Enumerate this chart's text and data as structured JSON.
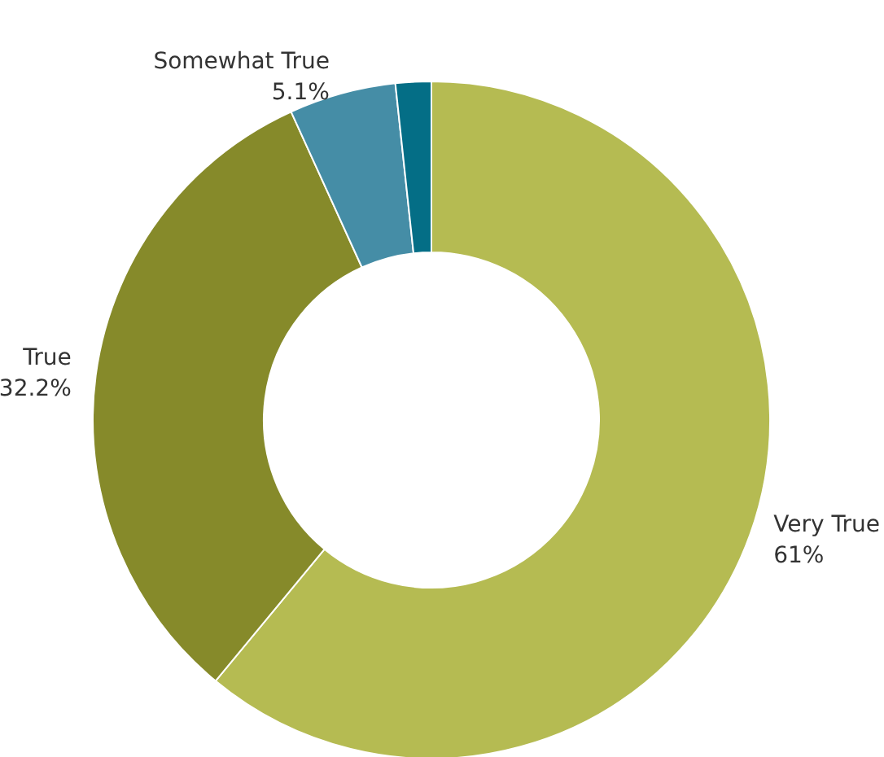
{
  "chart_data": {
    "type": "donut",
    "categories": [
      "Very True",
      "True",
      "Somewhat True",
      null
    ],
    "values": [
      61,
      32.2,
      5.1,
      1.7
    ],
    "value_labels": [
      "61%",
      "32.2%",
      "5.1%",
      null
    ],
    "colors": [
      "#b5bb52",
      "#868a2a",
      "#458da6",
      "#046e86"
    ]
  }
}
